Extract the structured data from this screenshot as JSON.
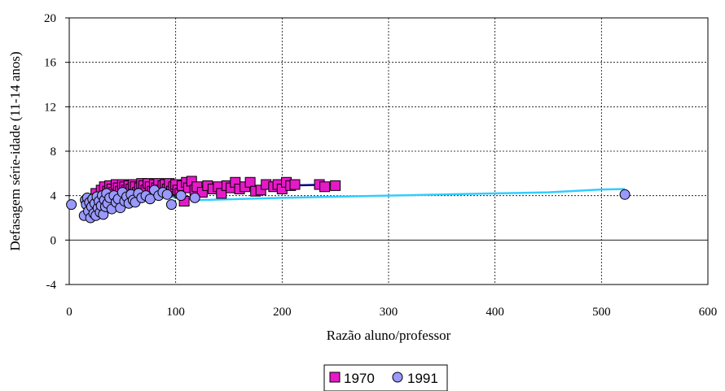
{
  "chart_data": {
    "type": "scatter",
    "xlabel": "Razão aluno/professor",
    "ylabel": "Defasagem série-idade (11-14 anos)",
    "xlim": [
      0,
      600
    ],
    "ylim": [
      -4,
      20
    ],
    "x_ticks": [
      0,
      100,
      200,
      300,
      400,
      500,
      600
    ],
    "y_ticks": [
      -4,
      0,
      4,
      8,
      12,
      16,
      20
    ],
    "grid": true,
    "legend_position": "bottom",
    "series": [
      {
        "name": "1970",
        "marker": "square",
        "color": "#e619c8",
        "trend_color": "#000080",
        "points": [
          [
            25,
            4.2
          ],
          [
            30,
            4.5
          ],
          [
            33,
            4.8
          ],
          [
            36,
            4.4
          ],
          [
            38,
            4.9
          ],
          [
            40,
            4.6
          ],
          [
            42,
            4.3
          ],
          [
            44,
            5.0
          ],
          [
            46,
            4.7
          ],
          [
            48,
            4.4
          ],
          [
            50,
            5.0
          ],
          [
            52,
            4.8
          ],
          [
            54,
            4.5
          ],
          [
            56,
            4.9
          ],
          [
            58,
            4.6
          ],
          [
            60,
            5.0
          ],
          [
            62,
            4.8
          ],
          [
            64,
            4.3
          ],
          [
            66,
            4.7
          ],
          [
            68,
            5.1
          ],
          [
            70,
            4.9
          ],
          [
            72,
            4.5
          ],
          [
            74,
            5.1
          ],
          [
            76,
            4.8
          ],
          [
            78,
            4.4
          ],
          [
            80,
            5.0
          ],
          [
            82,
            4.7
          ],
          [
            84,
            5.1
          ],
          [
            86,
            4.5
          ],
          [
            88,
            4.9
          ],
          [
            90,
            5.0
          ],
          [
            92,
            4.6
          ],
          [
            94,
            5.1
          ],
          [
            96,
            4.4
          ],
          [
            98,
            4.8
          ],
          [
            100,
            5.0
          ],
          [
            102,
            4.5
          ],
          [
            104,
            4.2
          ],
          [
            106,
            4.9
          ],
          [
            108,
            3.5
          ],
          [
            110,
            5.2
          ],
          [
            112,
            4.7
          ],
          [
            115,
            5.3
          ],
          [
            118,
            4.5
          ],
          [
            120,
            4.8
          ],
          [
            125,
            4.3
          ],
          [
            130,
            4.9
          ],
          [
            135,
            4.6
          ],
          [
            140,
            4.8
          ],
          [
            143,
            4.2
          ],
          [
            148,
            4.9
          ],
          [
            152,
            4.7
          ],
          [
            156,
            5.2
          ],
          [
            160,
            4.6
          ],
          [
            165,
            4.8
          ],
          [
            170,
            5.2
          ],
          [
            175,
            4.4
          ],
          [
            180,
            4.5
          ],
          [
            185,
            5.0
          ],
          [
            192,
            4.8
          ],
          [
            196,
            5.0
          ],
          [
            200,
            4.6
          ],
          [
            204,
            5.2
          ],
          [
            208,
            4.9
          ],
          [
            212,
            5.0
          ],
          [
            235,
            5.0
          ],
          [
            240,
            4.8
          ],
          [
            250,
            4.9
          ]
        ]
      },
      {
        "name": "1991",
        "marker": "circle",
        "color": "#9999ff",
        "trend_color": "#33ccff",
        "points": [
          [
            2,
            3.2
          ],
          [
            14,
            2.2
          ],
          [
            15,
            3.6
          ],
          [
            16,
            3.2
          ],
          [
            17,
            3.8
          ],
          [
            18,
            2.6
          ],
          [
            19,
            3.4
          ],
          [
            20,
            2.0
          ],
          [
            21,
            3.0
          ],
          [
            22,
            3.7
          ],
          [
            23,
            2.4
          ],
          [
            24,
            3.3
          ],
          [
            25,
            2.2
          ],
          [
            26,
            3.9
          ],
          [
            27,
            2.9
          ],
          [
            28,
            3.5
          ],
          [
            29,
            2.5
          ],
          [
            30,
            3.1
          ],
          [
            31,
            4.0
          ],
          [
            32,
            2.3
          ],
          [
            33,
            3.6
          ],
          [
            34,
            3.0
          ],
          [
            35,
            4.2
          ],
          [
            36,
            3.3
          ],
          [
            38,
            3.8
          ],
          [
            40,
            2.8
          ],
          [
            42,
            4.0
          ],
          [
            44,
            3.4
          ],
          [
            46,
            3.7
          ],
          [
            48,
            2.9
          ],
          [
            50,
            4.3
          ],
          [
            52,
            3.5
          ],
          [
            54,
            3.9
          ],
          [
            56,
            3.3
          ],
          [
            58,
            4.1
          ],
          [
            60,
            3.6
          ],
          [
            62,
            3.4
          ],
          [
            65,
            4.2
          ],
          [
            68,
            3.8
          ],
          [
            72,
            4.0
          ],
          [
            76,
            3.7
          ],
          [
            80,
            4.5
          ],
          [
            84,
            4.0
          ],
          [
            88,
            4.3
          ],
          [
            92,
            4.1
          ],
          [
            96,
            3.2
          ],
          [
            105,
            4.0
          ],
          [
            118,
            3.8
          ],
          [
            522,
            4.1
          ]
        ]
      }
    ],
    "trendlines": [
      {
        "name": "1970",
        "color": "#000080",
        "points": [
          [
            25,
            4.0
          ],
          [
            40,
            4.4
          ],
          [
            60,
            4.6
          ],
          [
            80,
            4.7
          ],
          [
            100,
            4.75
          ],
          [
            130,
            4.8
          ],
          [
            160,
            4.85
          ],
          [
            200,
            4.9
          ],
          [
            250,
            5.0
          ]
        ]
      },
      {
        "name": "1991",
        "color": "#33ccff",
        "points": [
          [
            15,
            2.6
          ],
          [
            25,
            3.0
          ],
          [
            40,
            3.4
          ],
          [
            60,
            3.7
          ],
          [
            80,
            3.9
          ],
          [
            100,
            3.85
          ],
          [
            120,
            3.6
          ],
          [
            200,
            3.8
          ],
          [
            300,
            4.0
          ],
          [
            400,
            4.2
          ],
          [
            450,
            4.3
          ],
          [
            500,
            4.55
          ],
          [
            522,
            4.6
          ]
        ]
      }
    ]
  }
}
